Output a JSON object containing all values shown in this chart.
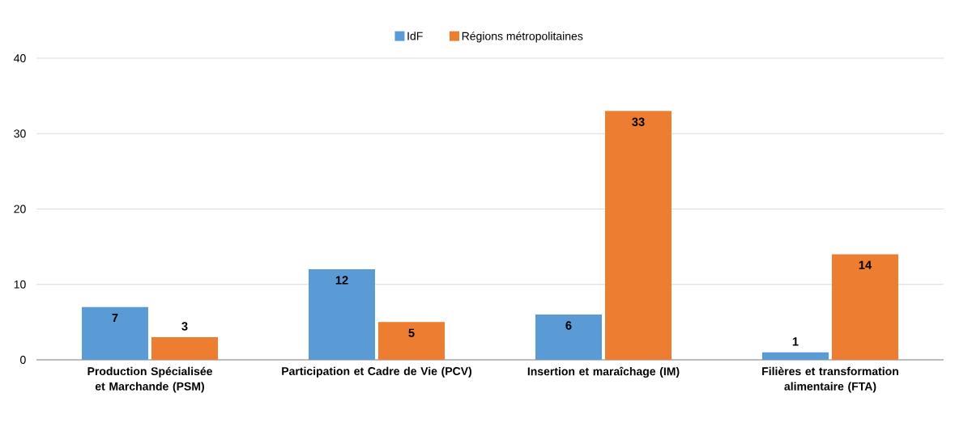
{
  "chart_data": {
    "type": "bar",
    "categories": [
      "Production Spécialisée et Marchande (PSM)",
      "Participation et Cadre de Vie (PCV)",
      "Insertion et maraîchage (IM)",
      "Filières et transformation alimentaire (FTA)"
    ],
    "series": [
      {
        "name": "IdF",
        "color": "#5b9bd5",
        "values": [
          7,
          12,
          6,
          1
        ]
      },
      {
        "name": "Régions métropolitaines",
        "color": "#ed7d31",
        "values": [
          3,
          5,
          33,
          14
        ]
      }
    ],
    "ylim": [
      0,
      40
    ],
    "yticks": [
      0,
      10,
      20,
      30,
      40
    ],
    "grid": "y",
    "legend": "top",
    "data_labels": true
  }
}
